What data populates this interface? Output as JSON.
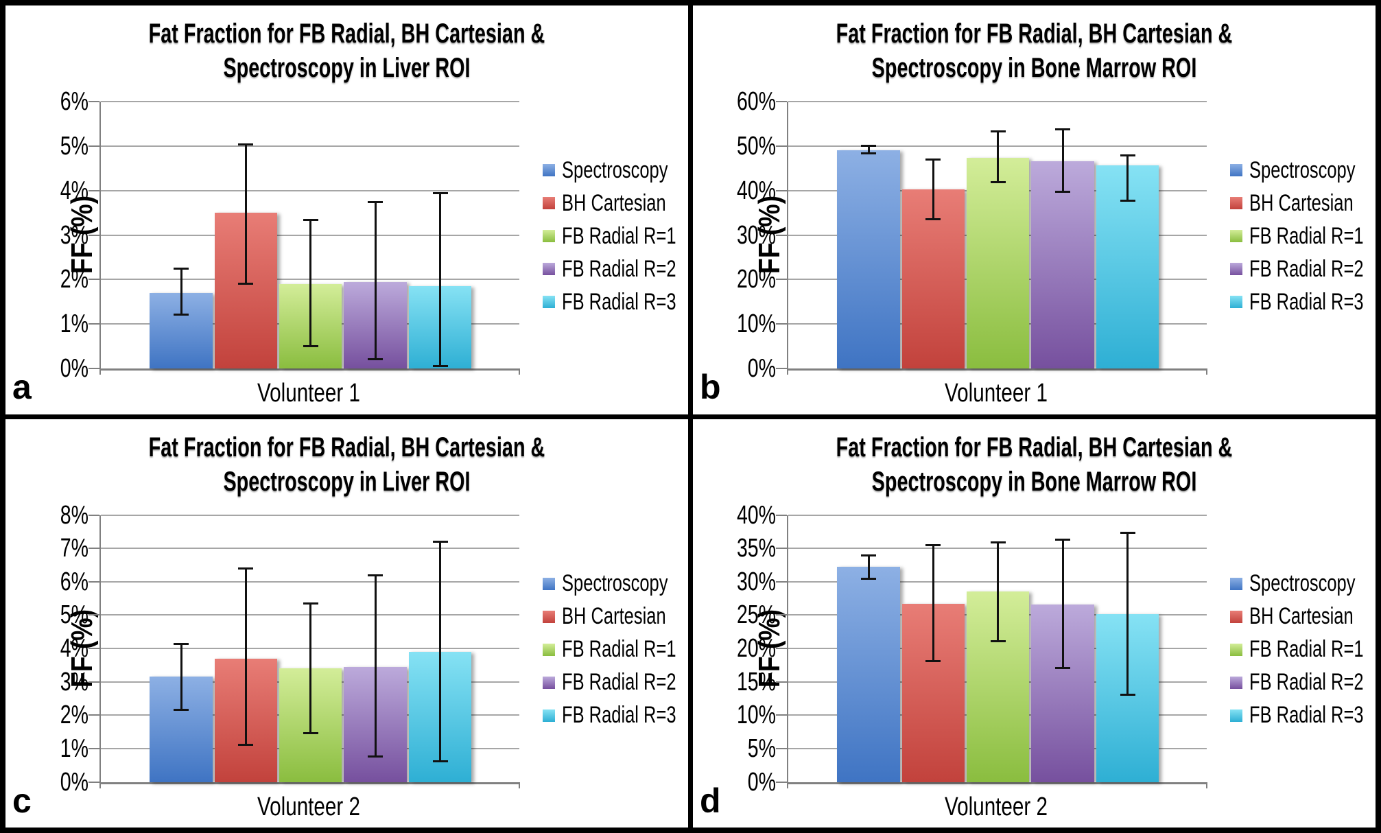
{
  "figure": {
    "background": "#ffffff",
    "frame_color": "#000000",
    "axis_color": "#808080",
    "gridline_color": "#a6a6a6",
    "error_bar_color": "#111111"
  },
  "series_style": [
    {
      "label": "Spectroscopy",
      "color_top": "#8db0e4",
      "color_bottom": "#3f74c3"
    },
    {
      "label": "BH Cartesian",
      "color_top": "#e87d76",
      "color_bottom": "#c2423c"
    },
    {
      "label": "FB Radial R=1",
      "color_top": "#d3ed99",
      "color_bottom": "#8abd3f"
    },
    {
      "label": "FB Radial R=2",
      "color_top": "#bcaadb",
      "color_bottom": "#76509e"
    },
    {
      "label": "FB Radial R=3",
      "color_top": "#86e2f4",
      "color_bottom": "#2eafd4"
    }
  ],
  "chart_data": [
    {
      "type": "bar",
      "panel_label": "a",
      "title": "Fat Fraction for FB Radial, BH Cartesian & Spectroscopy in Liver ROI",
      "title_lines": [
        "Fat Fraction for FB Radial, BH Cartesian &",
        "Spectroscopy in Liver ROI"
      ],
      "ylabel": "FF (%)",
      "categories": [
        "Volunteer 1"
      ],
      "ylim": [
        0,
        6
      ],
      "ytick_step": 1,
      "ytick_suffix": "%",
      "grid": true,
      "legend_position": "right",
      "series": [
        {
          "name": "Spectroscopy",
          "value": 1.7,
          "err_low": 1.2,
          "err_high": 2.25
        },
        {
          "name": "BH Cartesian",
          "value": 3.5,
          "err_low": 1.9,
          "err_high": 5.05
        },
        {
          "name": "FB Radial R=1",
          "value": 1.9,
          "err_low": 0.5,
          "err_high": 3.35
        },
        {
          "name": "FB Radial R=2",
          "value": 1.95,
          "err_low": 0.2,
          "err_high": 3.75
        },
        {
          "name": "FB Radial R=3",
          "value": 1.85,
          "err_low": 0.05,
          "err_high": 3.95
        }
      ]
    },
    {
      "type": "bar",
      "panel_label": "b",
      "title": "Fat Fraction for FB Radial, BH Cartesian & Spectroscopy in Bone Marrow ROI",
      "title_lines": [
        "Fat Fraction for FB Radial, BH Cartesian &",
        "Spectroscopy in Bone Marrow ROI"
      ],
      "ylabel": "FF (%)",
      "categories": [
        "Volunteer 1"
      ],
      "ylim": [
        0,
        60
      ],
      "ytick_step": 10,
      "ytick_suffix": "%",
      "grid": true,
      "legend_position": "right",
      "series": [
        {
          "name": "Spectroscopy",
          "value": 49.0,
          "err_low": 48.3,
          "err_high": 50.1
        },
        {
          "name": "BH Cartesian",
          "value": 40.2,
          "err_low": 33.4,
          "err_high": 47.0
        },
        {
          "name": "FB Radial R=1",
          "value": 47.4,
          "err_low": 41.8,
          "err_high": 53.3
        },
        {
          "name": "FB Radial R=2",
          "value": 46.6,
          "err_low": 39.6,
          "err_high": 53.9
        },
        {
          "name": "FB Radial R=3",
          "value": 45.7,
          "err_low": 37.6,
          "err_high": 47.9
        }
      ]
    },
    {
      "type": "bar",
      "panel_label": "c",
      "title": "Fat Fraction for FB Radial, BH Cartesian & Spectroscopy in Liver ROI",
      "title_lines": [
        "Fat Fraction for FB Radial, BH Cartesian &",
        "Spectroscopy in Liver ROI"
      ],
      "ylabel": "FF (%)",
      "categories": [
        "Volunteer 2"
      ],
      "ylim": [
        0,
        8
      ],
      "ytick_step": 1,
      "ytick_suffix": "%",
      "grid": true,
      "legend_position": "right",
      "series": [
        {
          "name": "Spectroscopy",
          "value": 3.15,
          "err_low": 2.15,
          "err_high": 4.15
        },
        {
          "name": "BH Cartesian",
          "value": 3.7,
          "err_low": 1.1,
          "err_high": 6.4
        },
        {
          "name": "FB Radial R=1",
          "value": 3.4,
          "err_low": 1.45,
          "err_high": 5.35
        },
        {
          "name": "FB Radial R=2",
          "value": 3.45,
          "err_low": 0.75,
          "err_high": 6.2
        },
        {
          "name": "FB Radial R=3",
          "value": 3.9,
          "err_low": 0.6,
          "err_high": 7.2
        }
      ]
    },
    {
      "type": "bar",
      "panel_label": "d",
      "title": "Fat Fraction for FB Radial, BH Cartesian & Spectroscopy in Bone Marrow ROI",
      "title_lines": [
        "Fat Fraction for FB Radial, BH Cartesian &",
        "Spectroscopy in Bone Marrow ROI"
      ],
      "ylabel": "FF (%)",
      "categories": [
        "Volunteer 2"
      ],
      "ylim": [
        0,
        40
      ],
      "ytick_step": 5,
      "ytick_suffix": "%",
      "grid": true,
      "legend_position": "right",
      "series": [
        {
          "name": "Spectroscopy",
          "value": 32.2,
          "err_low": 30.4,
          "err_high": 34.0
        },
        {
          "name": "BH Cartesian",
          "value": 26.7,
          "err_low": 18.0,
          "err_high": 35.5
        },
        {
          "name": "FB Radial R=1",
          "value": 28.5,
          "err_low": 21.0,
          "err_high": 35.9
        },
        {
          "name": "FB Radial R=2",
          "value": 26.6,
          "err_low": 17.0,
          "err_high": 36.4
        },
        {
          "name": "FB Radial R=3",
          "value": 25.1,
          "err_low": 13.0,
          "err_high": 37.4
        }
      ]
    }
  ]
}
